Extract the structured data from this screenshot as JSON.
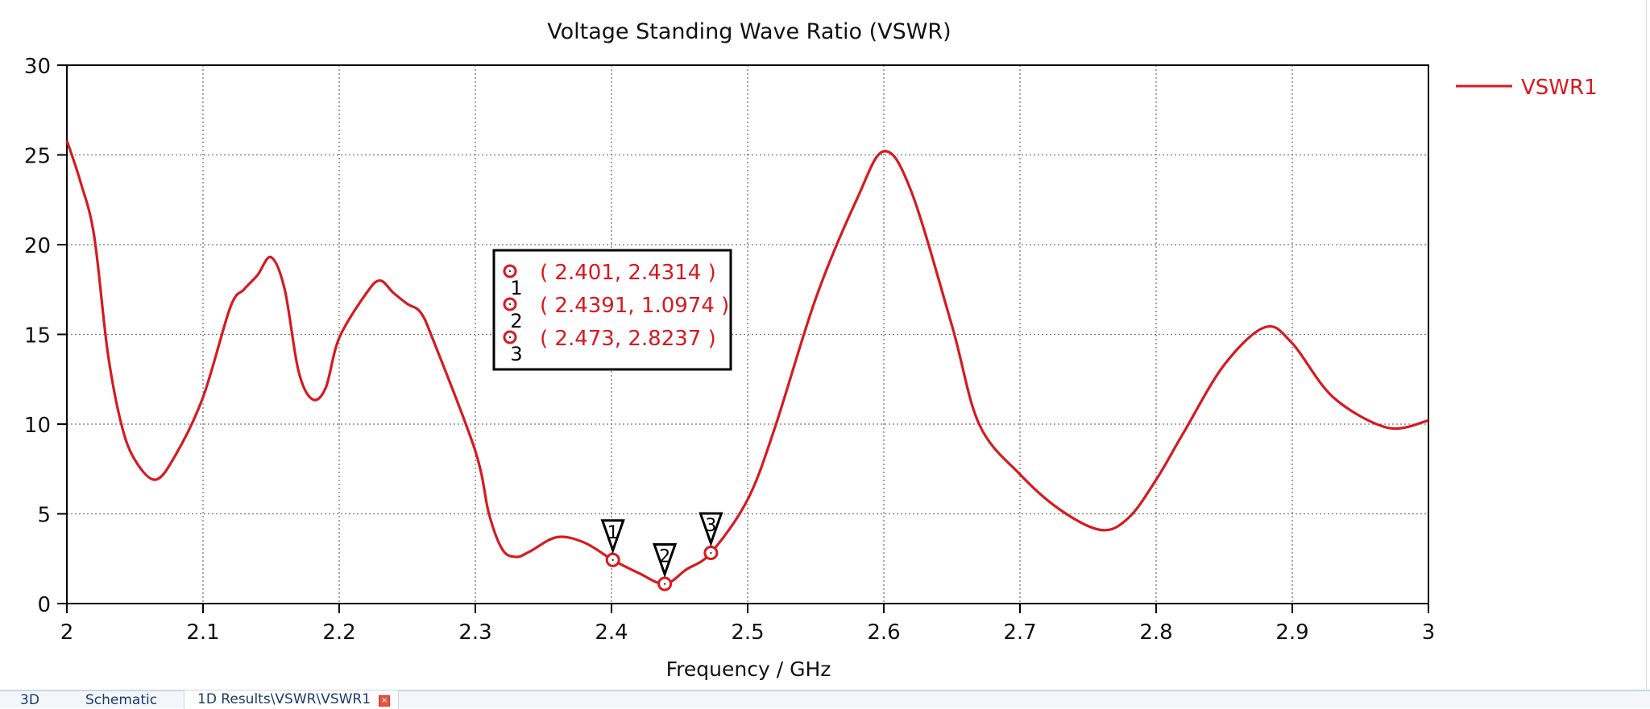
{
  "chart_data": {
    "type": "line",
    "title": "Voltage Standing Wave Ratio (VSWR)",
    "xlabel": "Frequency / GHz",
    "ylabel": "",
    "xlim": [
      2,
      3
    ],
    "ylim": [
      0,
      30
    ],
    "xticks": [
      "2",
      "2.1",
      "2.2",
      "2.3",
      "2.4",
      "2.5",
      "2.6",
      "2.7",
      "2.8",
      "2.9",
      "3"
    ],
    "xtick_values": [
      2,
      2.1,
      2.2,
      2.3,
      2.4,
      2.5,
      2.6,
      2.7,
      2.8,
      2.9,
      3
    ],
    "yticks": [
      "0",
      "5",
      "10",
      "15",
      "20",
      "25",
      "30"
    ],
    "ytick_values": [
      0,
      5,
      10,
      15,
      20,
      25,
      30
    ],
    "grid": true,
    "legend_position": "right",
    "series": [
      {
        "name": "VSWR1",
        "color": "#d71920",
        "x": [
          2.0,
          2.01,
          2.02,
          2.03,
          2.04,
          2.05,
          2.065,
          2.08,
          2.1,
          2.12,
          2.13,
          2.14,
          2.15,
          2.16,
          2.17,
          2.18,
          2.19,
          2.2,
          2.22,
          2.23,
          2.24,
          2.25,
          2.26,
          2.27,
          2.3,
          2.31,
          2.32,
          2.33,
          2.34,
          2.36,
          2.38,
          2.401,
          2.42,
          2.4391,
          2.455,
          2.473,
          2.5,
          2.52,
          2.55,
          2.58,
          2.6,
          2.62,
          2.65,
          2.67,
          2.7,
          2.73,
          2.76,
          2.78,
          2.8,
          2.82,
          2.85,
          2.88,
          2.9,
          2.93,
          2.97,
          3.0
        ],
        "y": [
          25.8,
          23.5,
          20.5,
          14.0,
          10.0,
          8.0,
          6.9,
          8.3,
          11.5,
          16.5,
          17.5,
          18.3,
          19.3,
          17.5,
          13.0,
          11.4,
          12.0,
          14.8,
          17.3,
          18.0,
          17.3,
          16.7,
          16.2,
          14.5,
          8.5,
          5.0,
          3.0,
          2.6,
          2.9,
          3.7,
          3.4,
          2.4314,
          1.7,
          1.0974,
          1.9,
          2.8237,
          5.8,
          9.8,
          17.0,
          22.5,
          25.2,
          23.0,
          15.5,
          10.0,
          7.2,
          5.2,
          4.1,
          4.8,
          6.9,
          9.5,
          13.3,
          15.4,
          14.5,
          11.5,
          9.8,
          10.2
        ]
      }
    ],
    "markers": [
      {
        "id": "1",
        "x": 2.401,
        "y": 2.4314,
        "label": "( 2.401, 2.4314 )"
      },
      {
        "id": "2",
        "x": 2.4391,
        "y": 1.0974,
        "label": "( 2.4391, 1.0974 )"
      },
      {
        "id": "3",
        "x": 2.473,
        "y": 2.8237,
        "label": "( 2.473, 2.8237 )"
      }
    ]
  },
  "tabs": [
    {
      "label": "3D",
      "active": false
    },
    {
      "label": "Schematic",
      "active": false
    },
    {
      "label": "1D Results\\VSWR\\VSWR1",
      "active": true,
      "close_icon": "close-icon"
    }
  ]
}
